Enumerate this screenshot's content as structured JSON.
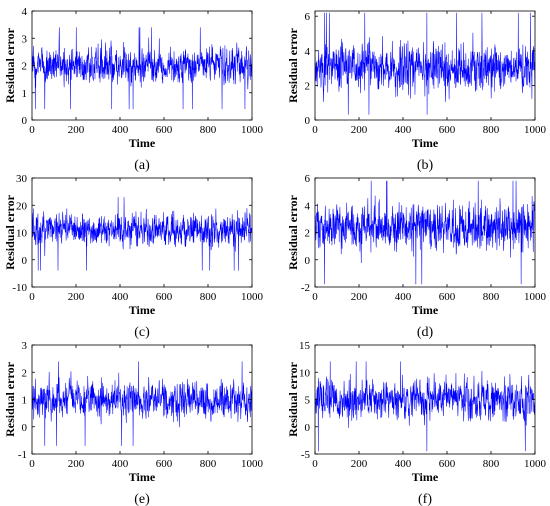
{
  "figure": {
    "panels": [
      {
        "label": "(a)",
        "xlabel": "Time",
        "ylabel": "Residual error"
      },
      {
        "label": "(b)",
        "xlabel": "Time",
        "ylabel": "Residual error"
      },
      {
        "label": "(c)",
        "xlabel": "Time",
        "ylabel": "Residual error"
      },
      {
        "label": "(d)",
        "xlabel": "Time",
        "ylabel": "Residual error"
      },
      {
        "label": "(e)",
        "xlabel": "Time",
        "ylabel": "Residual error"
      },
      {
        "label": "(f)",
        "xlabel": "Time",
        "ylabel": "Residual error"
      }
    ]
  },
  "chart_data": [
    {
      "type": "line",
      "panel_label": "(a)",
      "xlabel": "Time",
      "ylabel": "Residual error",
      "xlim": [
        0,
        1000
      ],
      "ylim": [
        0,
        4
      ],
      "xticks": [
        0,
        200,
        400,
        600,
        800,
        1000
      ],
      "yticks": [
        0,
        1,
        2,
        3,
        4
      ],
      "grid": false,
      "series_color": "#0000ff",
      "series": [
        {
          "n_points": 1000,
          "approx_mean": 2.0,
          "approx_min": 0.4,
          "approx_max": 3.4
        }
      ]
    },
    {
      "type": "line",
      "panel_label": "(b)",
      "xlabel": "Time",
      "ylabel": "Residual error",
      "xlim": [
        0,
        1000
      ],
      "ylim": [
        0,
        6.3
      ],
      "xticks": [
        0,
        200,
        400,
        600,
        800,
        1000
      ],
      "yticks": [
        0,
        2,
        4,
        6
      ],
      "grid": false,
      "series_color": "#0000ff",
      "series": [
        {
          "n_points": 1000,
          "approx_mean": 3.0,
          "approx_min": 0.3,
          "approx_max": 6.2
        }
      ]
    },
    {
      "type": "line",
      "panel_label": "(c)",
      "xlabel": "Time",
      "ylabel": "Residual error",
      "xlim": [
        0,
        1000
      ],
      "ylim": [
        -10,
        30
      ],
      "xticks": [
        0,
        200,
        400,
        600,
        800,
        1000
      ],
      "yticks": [
        -10,
        0,
        10,
        20,
        30
      ],
      "grid": false,
      "series_color": "#0000ff",
      "series": [
        {
          "n_points": 1000,
          "approx_mean": 11.0,
          "approx_min": -4,
          "approx_max": 23
        }
      ]
    },
    {
      "type": "line",
      "panel_label": "(d)",
      "xlabel": "Time",
      "ylabel": "Residual error",
      "xlim": [
        0,
        1000
      ],
      "ylim": [
        -2,
        6
      ],
      "xticks": [
        0,
        200,
        400,
        600,
        800,
        1000
      ],
      "yticks": [
        -2,
        0,
        2,
        4,
        6
      ],
      "grid": false,
      "series_color": "#0000ff",
      "series": [
        {
          "n_points": 1000,
          "approx_mean": 2.5,
          "approx_min": -1.8,
          "approx_max": 5.8
        }
      ]
    },
    {
      "type": "line",
      "panel_label": "(e)",
      "xlabel": "Time",
      "ylabel": "Residual error",
      "xlim": [
        0,
        1000
      ],
      "ylim": [
        -1,
        3
      ],
      "xticks": [
        0,
        200,
        400,
        600,
        800,
        1000
      ],
      "yticks": [
        -1,
        0,
        1,
        2,
        3
      ],
      "grid": false,
      "series_color": "#0000ff",
      "series": [
        {
          "n_points": 1000,
          "approx_mean": 1.0,
          "approx_min": -0.7,
          "approx_max": 2.4
        }
      ]
    },
    {
      "type": "line",
      "panel_label": "(f)",
      "xlabel": "Time",
      "ylabel": "Residual error",
      "xlim": [
        0,
        1000
      ],
      "ylim": [
        -5,
        15
      ],
      "xticks": [
        0,
        200,
        400,
        600,
        800,
        1000
      ],
      "yticks": [
        -5,
        0,
        5,
        10,
        15
      ],
      "grid": false,
      "series_color": "#0000ff",
      "series": [
        {
          "n_points": 1000,
          "approx_mean": 5.0,
          "approx_min": -4.5,
          "approx_max": 12
        }
      ]
    }
  ]
}
